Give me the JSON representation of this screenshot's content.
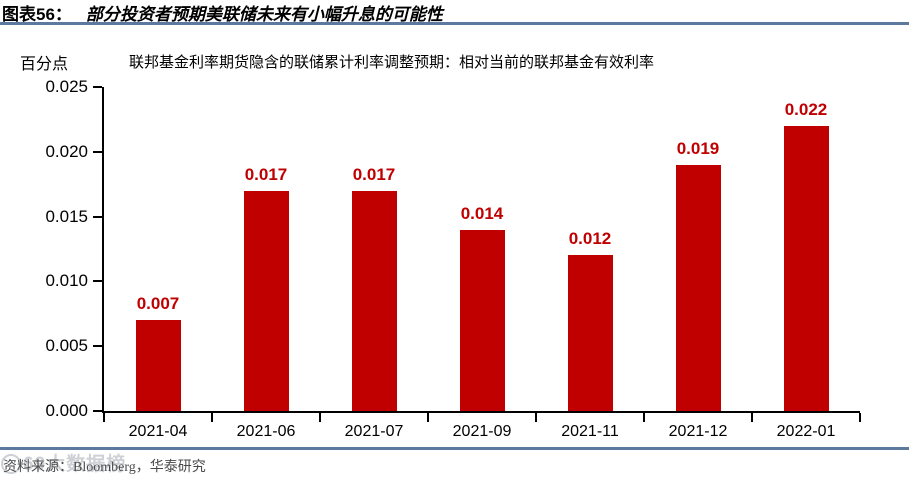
{
  "header": {
    "figure_label": "图表56：",
    "title": "部分投资者预期美联储未来有小幅升息的可能性"
  },
  "chart_data": {
    "type": "bar",
    "title": "联邦基金利率期货隐含的联储累计利率调整预期：相对当前的联邦基金有效利率",
    "xlabel": "",
    "ylabel": "百分点",
    "categories": [
      "2021-04",
      "2021-06",
      "2021-07",
      "2021-09",
      "2021-11",
      "2021-12",
      "2022-01"
    ],
    "values": [
      0.007,
      0.017,
      0.017,
      0.014,
      0.012,
      0.019,
      0.022
    ],
    "value_labels": [
      "0.007",
      "0.017",
      "0.017",
      "0.014",
      "0.012",
      "0.019",
      "0.022"
    ],
    "ylim": [
      0,
      0.025
    ],
    "ytick_labels": [
      "0.000",
      "0.005",
      "0.010",
      "0.015",
      "0.020",
      "0.025"
    ],
    "grid": false,
    "legend_position": "none",
    "bar_color": "#C00000",
    "value_label_color": "#C00000"
  },
  "footer": {
    "source": "资料来源：Bloomberg，华泰研究"
  },
  "watermark": {
    "text": "69大数据榜"
  },
  "colors": {
    "separator_line": "#5C7A9E",
    "axis": "#000000",
    "bar": "#C00000"
  }
}
